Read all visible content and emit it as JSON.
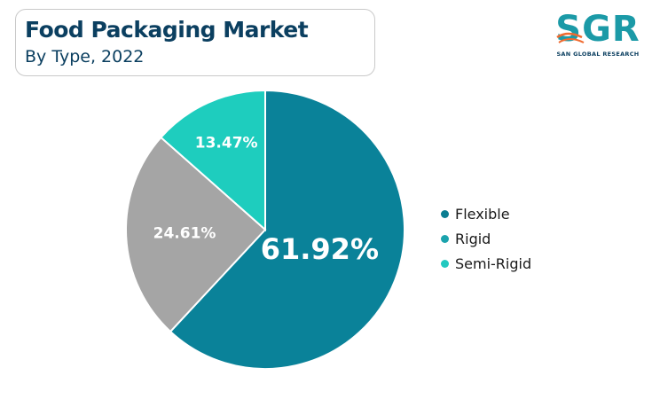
{
  "title": "Food Packaging Market",
  "subtitle": "By Type, 2022",
  "logo": {
    "letters": "SGR",
    "caption": "SAN GLOBAL RESEARCH"
  },
  "chart_data": {
    "type": "pie",
    "slices": [
      {
        "name": "Flexible",
        "value": 61.92,
        "label": "61.92%",
        "color": "#0a8299"
      },
      {
        "name": "Rigid",
        "value": 24.61,
        "label": "24.61%",
        "color": "#a5a5a5"
      },
      {
        "name": "Semi-Rigid",
        "value": 13.47,
        "label": "13.47%",
        "color": "#1ecdbe"
      }
    ],
    "legend": {
      "position": "right",
      "items": [
        {
          "label": "Flexible",
          "color": "#0a7d91"
        },
        {
          "label": "Rigid",
          "color": "#1ba3ad"
        },
        {
          "label": "Semi-Rigid",
          "color": "#22c9c0"
        }
      ]
    }
  }
}
